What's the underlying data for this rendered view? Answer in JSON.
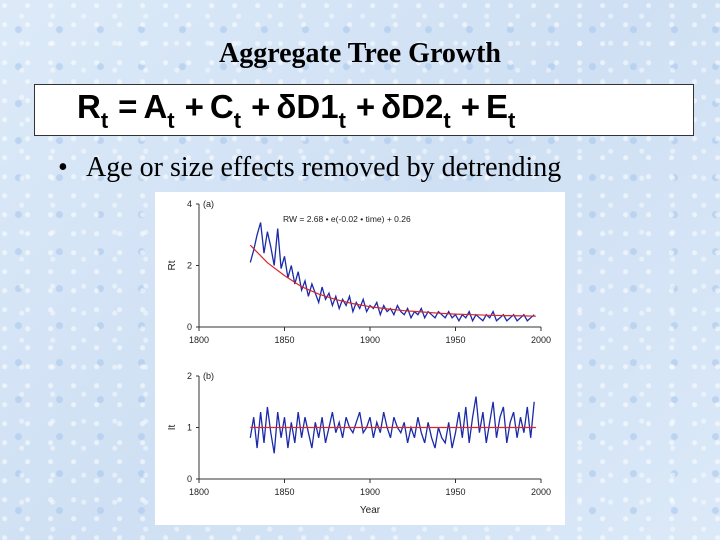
{
  "slide": {
    "title": "Aggregate Tree Growth",
    "equation": {
      "parts": [
        {
          "main": "R",
          "sub": "t"
        },
        {
          "op": "="
        },
        {
          "main": "A",
          "sub": "t"
        },
        {
          "op": "+"
        },
        {
          "main": "C",
          "sub": "t"
        },
        {
          "op": "+"
        },
        {
          "main": "δD1",
          "sub": "t"
        },
        {
          "op": "+"
        },
        {
          "main": "δD2",
          "sub": "t"
        },
        {
          "op": "+"
        },
        {
          "main": "E",
          "sub": "t"
        }
      ]
    },
    "bullet": "Age or size effects removed by detrending"
  },
  "chart_data": [
    {
      "type": "line",
      "panel_label": "(a)",
      "annotation": "RW = 2.68 • e(-0.02 • time) + 0.26",
      "ylabel": "Rt",
      "xlabel": "",
      "xlim": [
        1800,
        2000
      ],
      "ylim": [
        0,
        4
      ],
      "xticks": [
        "1800",
        "1850",
        "1900",
        "1950",
        "2000"
      ],
      "yticks": [
        "0",
        "2",
        "4"
      ],
      "series": [
        {
          "color": "#1a2aa8",
          "x": [
            1830,
            1832,
            1834,
            1836,
            1838,
            1840,
            1842,
            1844,
            1846,
            1848,
            1850,
            1852,
            1854,
            1856,
            1858,
            1860,
            1862,
            1864,
            1866,
            1868,
            1870,
            1872,
            1874,
            1876,
            1878,
            1880,
            1882,
            1884,
            1886,
            1888,
            1890,
            1892,
            1894,
            1896,
            1898,
            1900,
            1902,
            1904,
            1906,
            1908,
            1910,
            1912,
            1914,
            1916,
            1918,
            1920,
            1922,
            1924,
            1926,
            1928,
            1930,
            1932,
            1934,
            1936,
            1938,
            1940,
            1942,
            1944,
            1946,
            1948,
            1950,
            1952,
            1954,
            1956,
            1958,
            1960,
            1962,
            1964,
            1966,
            1968,
            1970,
            1972,
            1974,
            1976,
            1978,
            1980,
            1982,
            1984,
            1986,
            1988,
            1990,
            1992,
            1994,
            1996
          ],
          "y": [
            2.1,
            2.5,
            3.0,
            3.4,
            2.4,
            3.1,
            2.6,
            2.0,
            3.2,
            1.9,
            2.3,
            1.6,
            2.0,
            1.4,
            1.8,
            1.2,
            1.5,
            1.0,
            1.4,
            1.1,
            0.8,
            1.3,
            0.9,
            1.1,
            0.7,
            1.0,
            0.6,
            0.9,
            0.7,
            1.0,
            0.5,
            0.8,
            0.6,
            0.9,
            0.5,
            0.7,
            0.6,
            0.8,
            0.4,
            0.7,
            0.5,
            0.6,
            0.4,
            0.7,
            0.5,
            0.4,
            0.6,
            0.3,
            0.5,
            0.4,
            0.6,
            0.3,
            0.5,
            0.4,
            0.3,
            0.5,
            0.4,
            0.3,
            0.5,
            0.3,
            0.4,
            0.2,
            0.4,
            0.3,
            0.5,
            0.2,
            0.4,
            0.3,
            0.2,
            0.4,
            0.3,
            0.5,
            0.2,
            0.3,
            0.4,
            0.2,
            0.3,
            0.4,
            0.2,
            0.3,
            0.4,
            0.2,
            0.3,
            0.4
          ]
        },
        {
          "color": "#d8262b",
          "x": [
            1830,
            1840,
            1850,
            1860,
            1870,
            1880,
            1890,
            1900,
            1910,
            1920,
            1930,
            1940,
            1950,
            1960,
            1970,
            1980,
            1990,
            1997
          ],
          "y": [
            2.66,
            2.09,
            1.67,
            1.31,
            1.07,
            0.89,
            0.76,
            0.66,
            0.59,
            0.53,
            0.49,
            0.45,
            0.42,
            0.4,
            0.38,
            0.37,
            0.36,
            0.35
          ]
        }
      ]
    },
    {
      "type": "line",
      "panel_label": "(b)",
      "ylabel": "It",
      "xlabel": "Year",
      "xlim": [
        1800,
        2000
      ],
      "ylim": [
        0,
        2
      ],
      "xticks": [
        "1800",
        "1850",
        "1900",
        "1950",
        "2000"
      ],
      "yticks": [
        "0",
        "1",
        "2"
      ],
      "series": [
        {
          "color": "#1a2aa8",
          "x": [
            1830,
            1832,
            1834,
            1836,
            1838,
            1840,
            1842,
            1844,
            1846,
            1848,
            1850,
            1852,
            1854,
            1856,
            1858,
            1860,
            1862,
            1864,
            1866,
            1868,
            1870,
            1872,
            1874,
            1876,
            1878,
            1880,
            1882,
            1884,
            1886,
            1888,
            1890,
            1892,
            1894,
            1896,
            1898,
            1900,
            1902,
            1904,
            1906,
            1908,
            1910,
            1912,
            1914,
            1916,
            1918,
            1920,
            1922,
            1924,
            1926,
            1928,
            1930,
            1932,
            1934,
            1936,
            1938,
            1940,
            1942,
            1944,
            1946,
            1948,
            1950,
            1952,
            1954,
            1956,
            1958,
            1960,
            1962,
            1964,
            1966,
            1968,
            1970,
            1972,
            1974,
            1976,
            1978,
            1980,
            1982,
            1984,
            1986,
            1988,
            1990,
            1992,
            1994,
            1996
          ],
          "y": [
            0.8,
            1.2,
            0.6,
            1.3,
            0.7,
            1.4,
            0.9,
            0.5,
            1.3,
            0.8,
            1.2,
            0.6,
            1.1,
            0.7,
            1.3,
            0.8,
            1.2,
            0.9,
            0.6,
            1.1,
            0.8,
            1.2,
            0.7,
            1.0,
            1.3,
            0.9,
            1.1,
            0.8,
            1.2,
            1.0,
            0.9,
            1.1,
            1.3,
            0.9,
            1.0,
            1.2,
            0.8,
            1.1,
            0.9,
            1.3,
            1.0,
            0.8,
            1.2,
            1.0,
            0.9,
            1.1,
            0.7,
            1.0,
            0.8,
            1.2,
            0.9,
            0.7,
            1.1,
            0.8,
            0.6,
            1.0,
            0.8,
            0.7,
            1.1,
            0.6,
            0.9,
            1.3,
            0.8,
            1.4,
            0.7,
            1.2,
            1.6,
            0.9,
            1.3,
            0.7,
            1.1,
            1.5,
            0.8,
            1.2,
            1.4,
            0.7,
            1.1,
            1.3,
            0.8,
            1.2,
            0.9,
            1.4,
            0.8,
            1.5
          ]
        },
        {
          "color": "#d8262b",
          "x": [
            1830,
            1997
          ],
          "y": [
            1.0,
            1.0
          ]
        }
      ]
    }
  ]
}
